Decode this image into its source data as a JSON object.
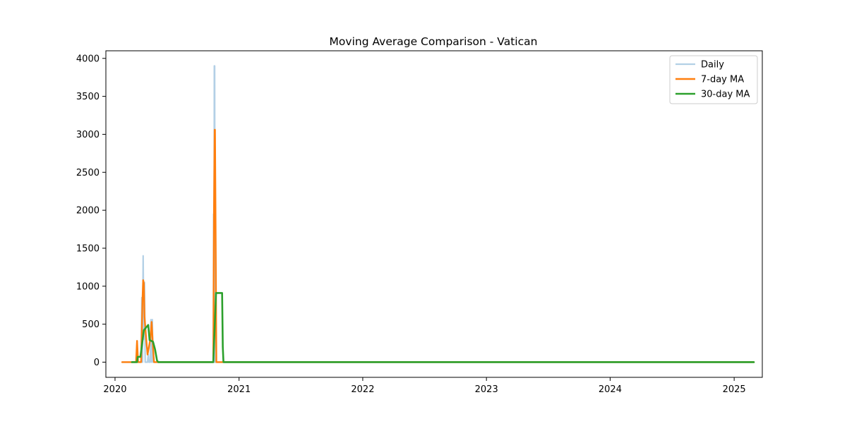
{
  "chart_data": {
    "type": "line",
    "title": "Moving Average Comparison - Vatican",
    "xlabel": "",
    "ylabel": "",
    "x_ticks": [
      "2020",
      "2021",
      "2022",
      "2023",
      "2024",
      "2025"
    ],
    "y_ticks": [
      0,
      500,
      1000,
      1500,
      2000,
      2500,
      3000,
      3500,
      4000
    ],
    "xlim": [
      "2019-12-05",
      "2025-03-25"
    ],
    "ylim": [
      -200,
      4100
    ],
    "grid": false,
    "legend_position": "top-right",
    "series": [
      {
        "name": "Daily",
        "color": "#b3d0e6",
        "width": 2.2,
        "points": [
          [
            "2020-01-22",
            0
          ],
          [
            "2020-03-04",
            0
          ],
          [
            "2020-03-06",
            280
          ],
          [
            "2020-03-08",
            0
          ],
          [
            "2020-03-12",
            0
          ],
          [
            "2020-03-14",
            0
          ],
          [
            "2020-03-18",
            0
          ],
          [
            "2020-03-20",
            850
          ],
          [
            "2020-03-22",
            0
          ],
          [
            "2020-03-24",
            1400
          ],
          [
            "2020-03-26",
            300
          ],
          [
            "2020-03-28",
            1050
          ],
          [
            "2020-03-30",
            0
          ],
          [
            "2020-04-06",
            0
          ],
          [
            "2020-04-08",
            100
          ],
          [
            "2020-04-10",
            0
          ],
          [
            "2020-04-14",
            0
          ],
          [
            "2020-04-16",
            560
          ],
          [
            "2020-04-18",
            0
          ],
          [
            "2020-04-20",
            560
          ],
          [
            "2020-04-22",
            0
          ],
          [
            "2020-10-17",
            0
          ],
          [
            "2020-10-18",
            1950
          ],
          [
            "2020-10-19",
            0
          ],
          [
            "2020-10-20",
            3900
          ],
          [
            "2020-10-21",
            3900
          ],
          [
            "2020-10-22",
            0
          ],
          [
            "2025-02-28",
            0
          ]
        ]
      },
      {
        "name": "7-day MA",
        "color": "#ff7f0e",
        "width": 2.4,
        "points": [
          [
            "2020-01-22",
            0
          ],
          [
            "2020-03-03",
            0
          ],
          [
            "2020-03-06",
            280
          ],
          [
            "2020-03-09",
            0
          ],
          [
            "2020-03-18",
            0
          ],
          [
            "2020-03-22",
            820
          ],
          [
            "2020-03-24",
            1080
          ],
          [
            "2020-03-26",
            1040
          ],
          [
            "2020-03-28",
            600
          ],
          [
            "2020-04-02",
            300
          ],
          [
            "2020-04-06",
            100
          ],
          [
            "2020-04-10",
            200
          ],
          [
            "2020-04-14",
            300
          ],
          [
            "2020-04-18",
            530
          ],
          [
            "2020-04-22",
            200
          ],
          [
            "2020-04-25",
            0
          ],
          [
            "2020-10-17",
            0
          ],
          [
            "2020-10-19",
            2000
          ],
          [
            "2020-10-21",
            3060
          ],
          [
            "2020-10-22",
            3060
          ],
          [
            "2020-10-24",
            1600
          ],
          [
            "2020-10-26",
            0
          ],
          [
            "2025-02-28",
            0
          ]
        ]
      },
      {
        "name": "30-day MA",
        "color": "#2ca02c",
        "width": 2.6,
        "points": [
          [
            "2020-02-20",
            0
          ],
          [
            "2020-03-06",
            0
          ],
          [
            "2020-03-08",
            70
          ],
          [
            "2020-03-16",
            70
          ],
          [
            "2020-03-26",
            420
          ],
          [
            "2020-04-08",
            490
          ],
          [
            "2020-04-12",
            290
          ],
          [
            "2020-04-22",
            270
          ],
          [
            "2020-04-28",
            170
          ],
          [
            "2020-05-04",
            20
          ],
          [
            "2020-05-08",
            0
          ],
          [
            "2020-10-17",
            0
          ],
          [
            "2020-10-25",
            910
          ],
          [
            "2020-11-12",
            910
          ],
          [
            "2020-11-14",
            200
          ],
          [
            "2020-11-16",
            0
          ],
          [
            "2025-02-28",
            0
          ]
        ]
      }
    ]
  }
}
